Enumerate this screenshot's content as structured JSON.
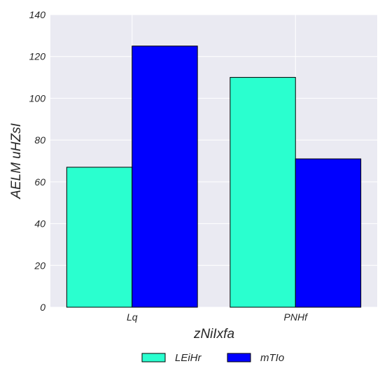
{
  "chart_data": {
    "type": "bar",
    "title": "",
    "xlabel": "zNiIxfa",
    "ylabel": "AELM uHZsI",
    "categories": [
      "Lq",
      "PNHf"
    ],
    "series": [
      {
        "name": "LEiHr",
        "values": [
          67,
          110
        ],
        "color": "#2affcf"
      },
      {
        "name": "mTIo",
        "values": [
          125,
          71
        ],
        "color": "#0000ff"
      }
    ],
    "ylim": [
      0,
      140
    ],
    "yticks": [
      0,
      20,
      40,
      60,
      80,
      100,
      120,
      140
    ],
    "grid": true,
    "legend_position": "bottom-center",
    "plot_background": "#eaeaf2",
    "grid_color": "#ffffff"
  }
}
